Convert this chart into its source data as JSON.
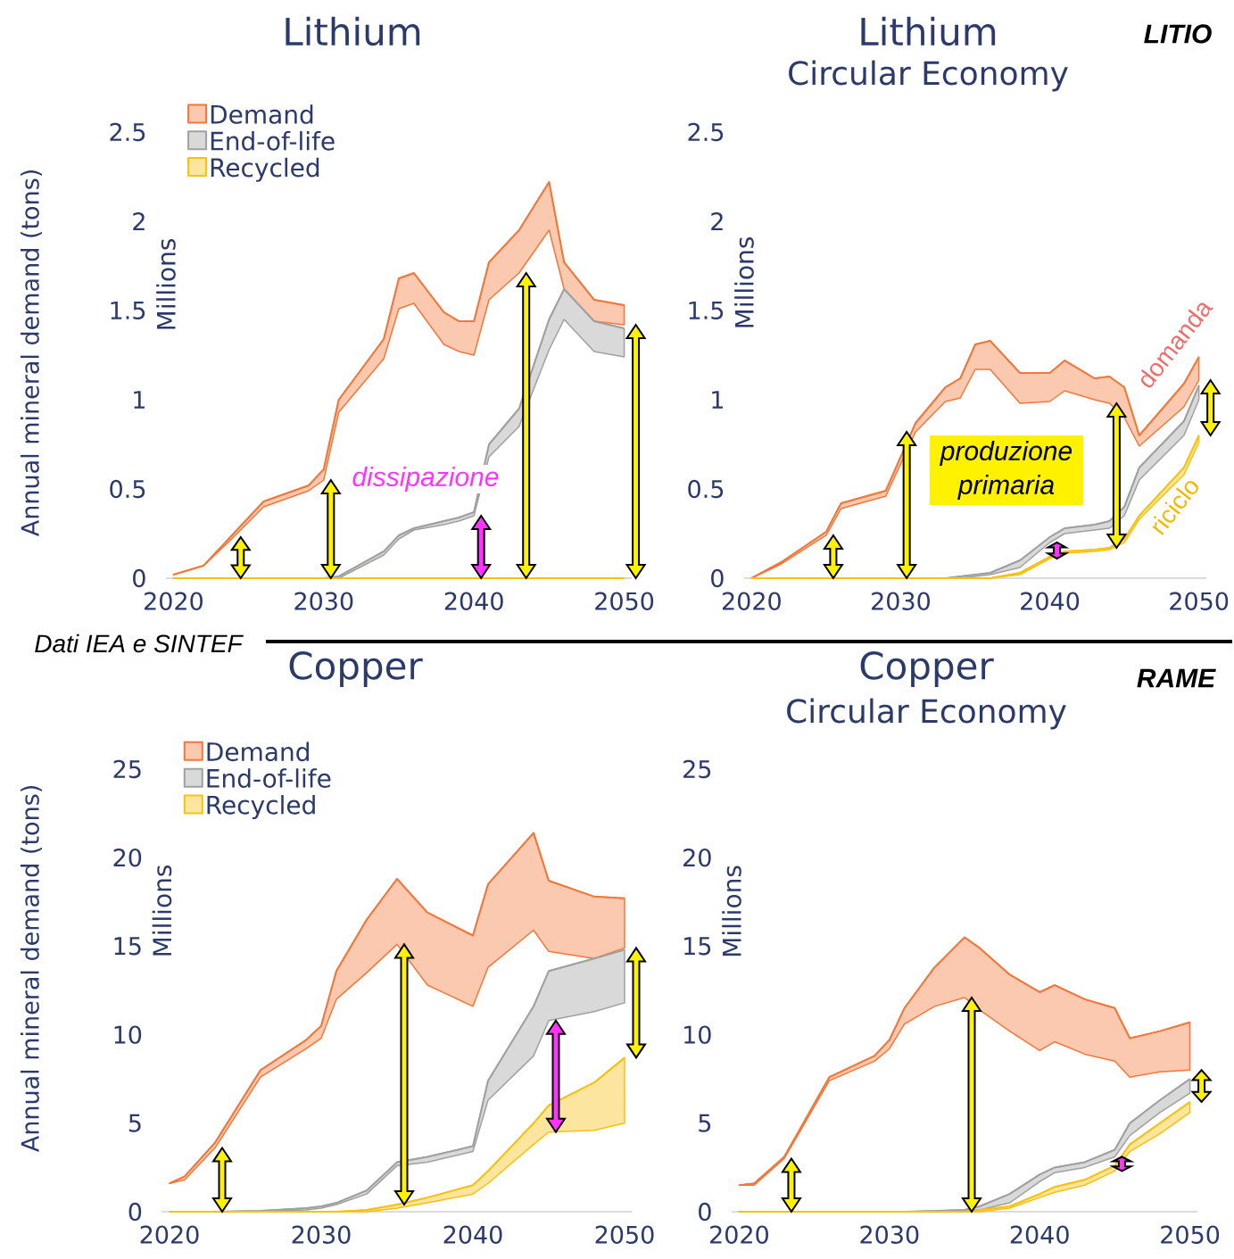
{
  "chart_data": [
    {
      "type": "line",
      "title": "Lithium",
      "ylabel": "Millions",
      "legend": "top left",
      "annotations": [
        "Annual mineral demand (tons)",
        "dissipazione"
      ],
      "x": [
        2020,
        2022,
        2024,
        2026,
        2029,
        2030,
        2031,
        2034,
        2035,
        2036,
        2038,
        2039,
        2040,
        2041,
        2043,
        2045,
        2046,
        2048,
        2050
      ],
      "xlim": [
        2019.5,
        2050.5
      ],
      "ylim": [
        0,
        2.5
      ],
      "xticks": [
        2020,
        2030,
        2040,
        2050
      ],
      "yticks": [
        0,
        0.5,
        1,
        1.5,
        2,
        2.5
      ],
      "series": [
        {
          "name": "Demand",
          "color": "#f4773a",
          "values": [
            0.02,
            0.07,
            0.25,
            0.43,
            0.52,
            0.61,
            1.0,
            1.34,
            1.68,
            1.71,
            1.49,
            1.44,
            1.44,
            1.77,
            1.95,
            2.22,
            1.77,
            1.56,
            1.53
          ],
          "upper": [
            0.02,
            0.07,
            0.25,
            0.43,
            0.52,
            0.61,
            1.0,
            1.34,
            1.68,
            1.71,
            1.49,
            1.44,
            1.44,
            1.77,
            1.95,
            2.22,
            1.77,
            1.56,
            1.53
          ],
          "lower": [
            0.02,
            0.07,
            0.23,
            0.4,
            0.49,
            0.55,
            0.93,
            1.23,
            1.51,
            1.54,
            1.31,
            1.27,
            1.25,
            1.56,
            1.71,
            1.95,
            1.62,
            1.44,
            1.42
          ]
        },
        {
          "name": "End-of-life",
          "color": "#a0a0a0",
          "values": [
            0,
            0,
            0,
            0,
            0,
            0,
            0.01,
            0.15,
            0.24,
            0.28,
            0.32,
            0.34,
            0.37,
            0.75,
            0.95,
            1.45,
            1.62,
            1.44,
            1.4
          ],
          "upper": [
            0,
            0,
            0,
            0,
            0,
            0,
            0.01,
            0.15,
            0.24,
            0.28,
            0.32,
            0.34,
            0.37,
            0.75,
            0.95,
            1.45,
            1.62,
            1.44,
            1.4
          ],
          "lower": [
            0,
            0,
            0,
            0,
            0,
            0,
            0,
            0.13,
            0.22,
            0.27,
            0.3,
            0.32,
            0.35,
            0.68,
            0.85,
            1.28,
            1.45,
            1.27,
            1.24
          ]
        },
        {
          "name": "Recycled",
          "color": "#f8c10f",
          "values": [
            0,
            0,
            0,
            0,
            0,
            0,
            0,
            0,
            0,
            0,
            0,
            0,
            0,
            0,
            0,
            0,
            0,
            0,
            0
          ]
        }
      ]
    },
    {
      "type": "line",
      "title": "Lithium",
      "subtitle": "Circular Economy",
      "ylabel": "Millions",
      "annotations": [
        "LITIO",
        "produzione primaria",
        "domanda",
        "riciclo"
      ],
      "x": [
        2020,
        2022,
        2025,
        2026,
        2029,
        2031,
        2033,
        2034,
        2035,
        2036,
        2038,
        2040,
        2041,
        2043,
        2044,
        2045,
        2046,
        2049,
        2050
      ],
      "xlim": [
        2019.5,
        2050.5
      ],
      "ylim": [
        0,
        2.5
      ],
      "xticks": [
        2020,
        2030,
        2040,
        2050
      ],
      "yticks": [
        0,
        0.5,
        1,
        1.5,
        2,
        2.5
      ],
      "series": [
        {
          "color": "#f4773a",
          "values": [
            0,
            0.09,
            0.26,
            0.42,
            0.49,
            0.87,
            1.07,
            1.12,
            1.31,
            1.33,
            1.15,
            1.15,
            1.22,
            1.12,
            1.13,
            1.07,
            0.8,
            1.09,
            1.24
          ],
          "upper": [
            0,
            0.09,
            0.26,
            0.42,
            0.49,
            0.87,
            1.07,
            1.12,
            1.31,
            1.33,
            1.15,
            1.15,
            1.22,
            1.12,
            1.13,
            1.07,
            0.8,
            1.09,
            1.24
          ],
          "lower": [
            0,
            0.08,
            0.24,
            0.39,
            0.46,
            0.82,
            0.99,
            1.01,
            1.17,
            1.17,
            0.98,
            0.99,
            1.05,
            1.0,
            0.98,
            0.9,
            0.74,
            0.96,
            1.11
          ]
        },
        {
          "color": "#a0a0a0",
          "values": [
            0,
            0,
            0,
            0,
            0,
            0,
            0,
            0.01,
            0.02,
            0.03,
            0.1,
            0.23,
            0.28,
            0.3,
            0.32,
            0.4,
            0.62,
            0.88,
            1.08
          ],
          "upper": [
            0,
            0,
            0,
            0,
            0,
            0,
            0,
            0.01,
            0.02,
            0.03,
            0.1,
            0.23,
            0.28,
            0.3,
            0.32,
            0.4,
            0.62,
            0.88,
            1.08
          ],
          "lower": [
            0,
            0,
            0,
            0,
            0,
            0,
            0,
            0,
            0.01,
            0.02,
            0.06,
            0.2,
            0.25,
            0.27,
            0.28,
            0.35,
            0.55,
            0.8,
            1.0
          ]
        },
        {
          "color": "#f8c10f",
          "values": [
            0,
            0,
            0,
            0,
            0,
            0,
            0,
            0,
            0,
            0,
            0.03,
            0.12,
            0.15,
            0.16,
            0.17,
            0.22,
            0.35,
            0.62,
            0.8
          ],
          "upper": [
            0,
            0,
            0,
            0,
            0,
            0,
            0,
            0,
            0,
            0,
            0.03,
            0.12,
            0.15,
            0.16,
            0.17,
            0.22,
            0.35,
            0.62,
            0.8
          ],
          "lower": [
            0,
            0,
            0,
            0,
            0,
            0,
            0,
            0,
            0,
            0,
            0.02,
            0.11,
            0.14,
            0.15,
            0.16,
            0.2,
            0.33,
            0.58,
            0.76
          ]
        }
      ]
    },
    {
      "type": "line",
      "title": "Copper",
      "ylabel": "Millions",
      "legend": "top left",
      "annotations": [
        "Dati IEA e SINTEF",
        "Annual mineral demand (tons)"
      ],
      "x": [
        2020,
        2021,
        2023,
        2026,
        2029,
        2030,
        2031,
        2033,
        2035,
        2037,
        2040,
        2041,
        2044,
        2045,
        2048,
        2050
      ],
      "xlim": [
        2019.5,
        2050.5
      ],
      "ylim": [
        0,
        25
      ],
      "xticks": [
        2020,
        2030,
        2040,
        2050
      ],
      "yticks": [
        0,
        5,
        10,
        15,
        20,
        25
      ],
      "series": [
        {
          "name": "Demand",
          "color": "#f4773a",
          "values": [
            1.6,
            2.0,
            3.9,
            8.0,
            9.7,
            10.5,
            13.6,
            16.5,
            18.8,
            16.9,
            15.6,
            18.5,
            21.4,
            18.7,
            17.8,
            17.7
          ],
          "upper": [
            1.6,
            2.0,
            3.9,
            8.0,
            9.7,
            10.5,
            13.6,
            16.5,
            18.8,
            16.9,
            15.6,
            18.5,
            21.4,
            18.7,
            17.8,
            17.7
          ],
          "lower": [
            1.6,
            1.8,
            3.6,
            7.6,
            9.2,
            9.8,
            12.0,
            13.5,
            15.1,
            12.8,
            11.6,
            13.8,
            15.9,
            14.7,
            14.3,
            14.9
          ]
        },
        {
          "name": "End-of-life",
          "color": "#a0a0a0",
          "values": [
            0,
            0,
            0,
            0.05,
            0.2,
            0.3,
            0.5,
            1.2,
            2.8,
            3.1,
            3.7,
            7.4,
            11.6,
            13.6,
            14.3,
            14.8
          ],
          "upper": [
            0,
            0,
            0,
            0.05,
            0.2,
            0.3,
            0.5,
            1.2,
            2.8,
            3.1,
            3.7,
            7.4,
            11.6,
            13.6,
            14.3,
            14.8
          ],
          "lower": [
            0,
            0,
            0,
            0,
            0.1,
            0.2,
            0.4,
            1.0,
            2.6,
            2.8,
            3.4,
            6.3,
            8.8,
            10.8,
            11.3,
            11.8
          ]
        },
        {
          "name": "Recycled",
          "color": "#f8c10f",
          "values": [
            0,
            0,
            0,
            0,
            0,
            0,
            0,
            0.1,
            0.4,
            0.8,
            1.5,
            2.3,
            5.0,
            6.0,
            7.3,
            8.7
          ],
          "upper": [
            0,
            0,
            0,
            0,
            0,
            0,
            0,
            0.1,
            0.4,
            0.8,
            1.5,
            2.3,
            5.0,
            6.0,
            7.3,
            8.7
          ],
          "lower": [
            0,
            0,
            0,
            0,
            0,
            0,
            0,
            0,
            0.2,
            0.5,
            1.0,
            1.6,
            3.8,
            4.5,
            4.6,
            5.0
          ]
        }
      ]
    },
    {
      "type": "line",
      "title": "Copper",
      "subtitle": "Circular Economy",
      "ylabel": "Millions",
      "annotations": [
        "RAME"
      ],
      "x": [
        2020,
        2021,
        2023,
        2026,
        2029,
        2030,
        2031,
        2033,
        2035,
        2036,
        2038,
        2040,
        2041,
        2043,
        2045,
        2046,
        2048,
        2050
      ],
      "xlim": [
        2019.5,
        2050.5
      ],
      "ylim": [
        0,
        25
      ],
      "xticks": [
        2020,
        2030,
        2040,
        2050
      ],
      "yticks": [
        0,
        5,
        10,
        15,
        20,
        25
      ],
      "series": [
        {
          "color": "#f4773a",
          "values": [
            1.5,
            1.6,
            3.1,
            7.6,
            8.8,
            9.7,
            11.5,
            13.8,
            15.5,
            14.9,
            13.4,
            12.4,
            12.8,
            12.0,
            11.5,
            9.8,
            10.2,
            10.7
          ],
          "upper": [
            1.5,
            1.6,
            3.1,
            7.6,
            8.8,
            9.7,
            11.5,
            13.8,
            15.5,
            14.9,
            13.4,
            12.4,
            12.8,
            12.0,
            11.5,
            9.8,
            10.2,
            10.7
          ],
          "lower": [
            1.5,
            1.5,
            3.0,
            7.4,
            8.5,
            9.2,
            10.6,
            11.6,
            12.1,
            11.4,
            10.2,
            9.1,
            9.6,
            8.9,
            8.5,
            7.6,
            7.9,
            8.0
          ]
        },
        {
          "color": "#a0a0a0",
          "values": [
            0,
            0,
            0,
            0,
            0,
            0,
            0,
            0.05,
            0.1,
            0.3,
            1.0,
            2.1,
            2.5,
            2.8,
            3.5,
            5.0,
            6.3,
            7.5
          ],
          "upper": [
            0,
            0,
            0,
            0,
            0,
            0,
            0,
            0.05,
            0.1,
            0.3,
            1.0,
            2.1,
            2.5,
            2.8,
            3.5,
            5.0,
            6.3,
            7.5
          ],
          "lower": [
            0,
            0,
            0,
            0,
            0,
            0,
            0,
            0,
            0.05,
            0.1,
            0.5,
            1.7,
            2.2,
            2.5,
            3.1,
            4.3,
            5.6,
            6.7
          ]
        },
        {
          "color": "#f8c10f",
          "values": [
            0,
            0,
            0,
            0,
            0,
            0,
            0,
            0,
            0,
            0.1,
            0.3,
            1.0,
            1.4,
            1.8,
            2.6,
            3.8,
            5.0,
            6.2
          ],
          "upper": [
            0,
            0,
            0,
            0,
            0,
            0,
            0,
            0,
            0,
            0.1,
            0.3,
            1.0,
            1.4,
            1.8,
            2.6,
            3.8,
            5.0,
            6.2
          ],
          "lower": [
            0,
            0,
            0,
            0,
            0,
            0,
            0,
            0,
            0,
            0,
            0.2,
            0.8,
            1.1,
            1.5,
            2.3,
            3.4,
            4.4,
            5.6
          ]
        }
      ]
    }
  ]
}
